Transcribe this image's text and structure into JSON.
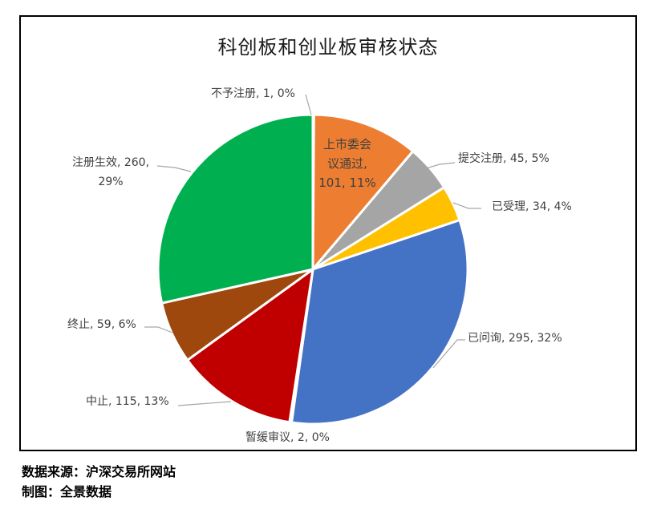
{
  "chart_data": {
    "type": "pie",
    "title": "科创板和创业板审核状态",
    "start_angle_deg": 0,
    "direction": "clockwise",
    "total": 912,
    "slices": [
      {
        "label": "不予注册",
        "value": 1,
        "percent": "0%",
        "color": "#5B9BD5"
      },
      {
        "label": "上市委会议通过",
        "value": 101,
        "percent": "11%",
        "color": "#ED7D31"
      },
      {
        "label": "提交注册",
        "value": 45,
        "percent": "5%",
        "color": "#A5A5A5"
      },
      {
        "label": "已受理",
        "value": 34,
        "percent": "4%",
        "color": "#FFC000"
      },
      {
        "label": "已问询",
        "value": 295,
        "percent": "32%",
        "color": "#4472C4"
      },
      {
        "label": "暂缓审议",
        "value": 2,
        "percent": "0%",
        "color": "#70AD47"
      },
      {
        "label": "中止",
        "value": 115,
        "percent": "13%",
        "color": "#C00000"
      },
      {
        "label": "终止",
        "value": 59,
        "percent": "6%",
        "color": "#9E480E"
      },
      {
        "label": "注册生效",
        "value": 260,
        "percent": "29%",
        "color": "#00B050"
      }
    ],
    "legend": "none",
    "data_labels": "category, value, percent"
  },
  "labels": {
    "buyu": "不予注册, 1, 0%",
    "shangshi_line1": "上市委会",
    "shangshi_line2": "议通过,",
    "shangshi_line3": "101, 11%",
    "tijiao": "提交注册, 45, 5%",
    "yishouli": "已受理, 34, 4%",
    "yiwenxun": "已问询, 295, 32%",
    "zanhuan": "暂缓审议, 2, 0%",
    "zhongzhi_mid": "中止, 115, 13%",
    "zhongzhi_end": "终止, 59, 6%",
    "zhuce_line1": "注册生效, 260,",
    "zhuce_line2": "29%"
  },
  "footer": {
    "source": "数据来源：沪深交易所网站",
    "maker": "制图：全景数据"
  }
}
